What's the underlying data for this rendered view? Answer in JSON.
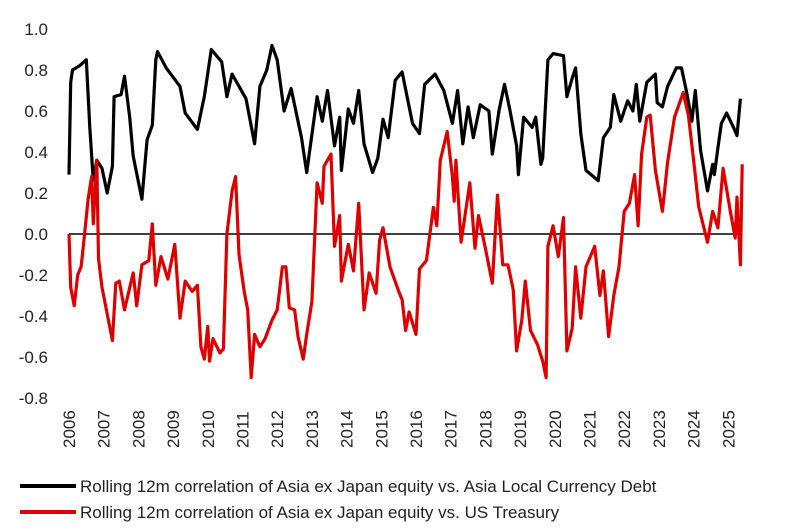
{
  "chart_data": {
    "type": "line",
    "title": "",
    "xlabel": "",
    "ylabel": "",
    "ylim": [
      -0.8,
      1.0
    ],
    "xlim": [
      2006,
      2025.4
    ],
    "y_ticks": [
      "1.0",
      "0.8",
      "0.6",
      "0.4",
      "0.2",
      "0.0",
      "-0.2",
      "-0.4",
      "-0.6",
      "-0.8"
    ],
    "y_tick_values": [
      1.0,
      0.8,
      0.6,
      0.4,
      0.2,
      0.0,
      -0.2,
      -0.4,
      -0.6,
      -0.8
    ],
    "x_ticks": [
      "2006",
      "2007",
      "2008",
      "2009",
      "2010",
      "2011",
      "2012",
      "2013",
      "2014",
      "2015",
      "2016",
      "2017",
      "2018",
      "2019",
      "2020",
      "2021",
      "2022",
      "2023",
      "2024",
      "2025"
    ],
    "grid": false,
    "zero_line": true,
    "legend_position": "bottom",
    "series": [
      {
        "name": "Rolling 12m correlation of Asia ex Japan equity vs. Asia Local Currency Debt",
        "color": "#000000",
        "points": [
          [
            2006.0,
            0.29
          ],
          [
            2006.05,
            0.74
          ],
          [
            2006.1,
            0.8
          ],
          [
            2006.3,
            0.82
          ],
          [
            2006.5,
            0.85
          ],
          [
            2006.6,
            0.52
          ],
          [
            2006.7,
            0.26
          ],
          [
            2006.8,
            0.36
          ],
          [
            2006.95,
            0.32
          ],
          [
            2007.1,
            0.2
          ],
          [
            2007.25,
            0.33
          ],
          [
            2007.3,
            0.67
          ],
          [
            2007.5,
            0.68
          ],
          [
            2007.6,
            0.77
          ],
          [
            2007.75,
            0.57
          ],
          [
            2007.85,
            0.38
          ],
          [
            2008.1,
            0.17
          ],
          [
            2008.25,
            0.46
          ],
          [
            2008.4,
            0.53
          ],
          [
            2008.5,
            0.85
          ],
          [
            2008.55,
            0.89
          ],
          [
            2008.8,
            0.81
          ],
          [
            2009.2,
            0.72
          ],
          [
            2009.35,
            0.59
          ],
          [
            2009.7,
            0.51
          ],
          [
            2009.9,
            0.67
          ],
          [
            2010.1,
            0.9
          ],
          [
            2010.4,
            0.84
          ],
          [
            2010.55,
            0.67
          ],
          [
            2010.7,
            0.78
          ],
          [
            2011.1,
            0.66
          ],
          [
            2011.35,
            0.44
          ],
          [
            2011.5,
            0.72
          ],
          [
            2011.7,
            0.8
          ],
          [
            2011.85,
            0.92
          ],
          [
            2012.0,
            0.85
          ],
          [
            2012.2,
            0.6
          ],
          [
            2012.4,
            0.71
          ],
          [
            2012.7,
            0.47
          ],
          [
            2012.85,
            0.3
          ],
          [
            2013.15,
            0.67
          ],
          [
            2013.3,
            0.55
          ],
          [
            2013.45,
            0.7
          ],
          [
            2013.65,
            0.43
          ],
          [
            2013.8,
            0.57
          ],
          [
            2013.85,
            0.31
          ],
          [
            2014.05,
            0.61
          ],
          [
            2014.2,
            0.54
          ],
          [
            2014.35,
            0.7
          ],
          [
            2014.5,
            0.44
          ],
          [
            2014.75,
            0.3
          ],
          [
            2014.9,
            0.37
          ],
          [
            2015.05,
            0.56
          ],
          [
            2015.2,
            0.47
          ],
          [
            2015.4,
            0.75
          ],
          [
            2015.6,
            0.79
          ],
          [
            2015.9,
            0.54
          ],
          [
            2016.1,
            0.49
          ],
          [
            2016.25,
            0.73
          ],
          [
            2016.55,
            0.78
          ],
          [
            2016.8,
            0.7
          ],
          [
            2017.05,
            0.54
          ],
          [
            2017.2,
            0.7
          ],
          [
            2017.35,
            0.44
          ],
          [
            2017.5,
            0.62
          ],
          [
            2017.65,
            0.47
          ],
          [
            2017.85,
            0.63
          ],
          [
            2018.1,
            0.6
          ],
          [
            2018.2,
            0.39
          ],
          [
            2018.4,
            0.61
          ],
          [
            2018.55,
            0.73
          ],
          [
            2018.7,
            0.61
          ],
          [
            2018.9,
            0.43
          ],
          [
            2018.95,
            0.29
          ],
          [
            2019.1,
            0.57
          ],
          [
            2019.35,
            0.52
          ],
          [
            2019.45,
            0.57
          ],
          [
            2019.6,
            0.34
          ],
          [
            2019.65,
            0.37
          ],
          [
            2019.8,
            0.85
          ],
          [
            2019.95,
            0.88
          ],
          [
            2020.25,
            0.87
          ],
          [
            2020.35,
            0.67
          ],
          [
            2020.5,
            0.76
          ],
          [
            2020.6,
            0.81
          ],
          [
            2020.75,
            0.49
          ],
          [
            2020.9,
            0.31
          ],
          [
            2021.25,
            0.26
          ],
          [
            2021.4,
            0.47
          ],
          [
            2021.6,
            0.52
          ],
          [
            2021.7,
            0.68
          ],
          [
            2021.9,
            0.55
          ],
          [
            2022.1,
            0.65
          ],
          [
            2022.25,
            0.6
          ],
          [
            2022.35,
            0.73
          ],
          [
            2022.45,
            0.55
          ],
          [
            2022.65,
            0.74
          ],
          [
            2022.9,
            0.78
          ],
          [
            2022.95,
            0.64
          ],
          [
            2023.1,
            0.62
          ],
          [
            2023.25,
            0.72
          ],
          [
            2023.5,
            0.81
          ],
          [
            2023.65,
            0.81
          ],
          [
            2023.8,
            0.69
          ],
          [
            2023.95,
            0.55
          ],
          [
            2024.05,
            0.7
          ],
          [
            2024.2,
            0.41
          ],
          [
            2024.4,
            0.21
          ],
          [
            2024.55,
            0.34
          ],
          [
            2024.6,
            0.29
          ],
          [
            2024.7,
            0.42
          ],
          [
            2024.8,
            0.54
          ],
          [
            2024.95,
            0.59
          ],
          [
            2025.15,
            0.52
          ],
          [
            2025.25,
            0.48
          ],
          [
            2025.35,
            0.66
          ]
        ]
      },
      {
        "name": "Rolling 12m correlation of Asia ex Japan equity vs. US Treasury",
        "color": "#e00000",
        "points": [
          [
            2006.0,
            0.0
          ],
          [
            2006.05,
            -0.26
          ],
          [
            2006.15,
            -0.35
          ],
          [
            2006.25,
            -0.2
          ],
          [
            2006.35,
            -0.16
          ],
          [
            2006.45,
            0.0
          ],
          [
            2006.55,
            0.17
          ],
          [
            2006.65,
            0.28
          ],
          [
            2006.7,
            0.05
          ],
          [
            2006.8,
            0.36
          ],
          [
            2006.85,
            -0.12
          ],
          [
            2006.95,
            -0.26
          ],
          [
            2007.1,
            -0.39
          ],
          [
            2007.25,
            -0.52
          ],
          [
            2007.35,
            -0.24
          ],
          [
            2007.45,
            -0.23
          ],
          [
            2007.6,
            -0.37
          ],
          [
            2007.85,
            -0.19
          ],
          [
            2007.95,
            -0.35
          ],
          [
            2008.1,
            -0.15
          ],
          [
            2008.3,
            -0.13
          ],
          [
            2008.4,
            0.05
          ],
          [
            2008.5,
            -0.25
          ],
          [
            2008.65,
            -0.11
          ],
          [
            2008.85,
            -0.22
          ],
          [
            2009.05,
            -0.05
          ],
          [
            2009.2,
            -0.41
          ],
          [
            2009.35,
            -0.23
          ],
          [
            2009.55,
            -0.28
          ],
          [
            2009.7,
            -0.25
          ],
          [
            2009.8,
            -0.55
          ],
          [
            2009.9,
            -0.61
          ],
          [
            2010.0,
            -0.45
          ],
          [
            2010.05,
            -0.62
          ],
          [
            2010.15,
            -0.51
          ],
          [
            2010.35,
            -0.58
          ],
          [
            2010.45,
            -0.56
          ],
          [
            2010.55,
            0.0
          ],
          [
            2010.7,
            0.21
          ],
          [
            2010.8,
            0.28
          ],
          [
            2010.9,
            -0.1
          ],
          [
            2011.05,
            -0.28
          ],
          [
            2011.15,
            -0.37
          ],
          [
            2011.25,
            -0.7
          ],
          [
            2011.35,
            -0.49
          ],
          [
            2011.5,
            -0.55
          ],
          [
            2011.65,
            -0.51
          ],
          [
            2011.85,
            -0.42
          ],
          [
            2012.0,
            -0.37
          ],
          [
            2012.15,
            -0.16
          ],
          [
            2012.25,
            -0.16
          ],
          [
            2012.35,
            -0.36
          ],
          [
            2012.5,
            -0.37
          ],
          [
            2012.6,
            -0.5
          ],
          [
            2012.75,
            -0.61
          ],
          [
            2012.85,
            -0.49
          ],
          [
            2013.0,
            -0.33
          ],
          [
            2013.15,
            0.25
          ],
          [
            2013.3,
            0.15
          ],
          [
            2013.35,
            0.33
          ],
          [
            2013.55,
            0.39
          ],
          [
            2013.65,
            -0.06
          ],
          [
            2013.8,
            0.09
          ],
          [
            2013.85,
            -0.23
          ],
          [
            2014.05,
            -0.05
          ],
          [
            2014.2,
            -0.18
          ],
          [
            2014.35,
            0.15
          ],
          [
            2014.5,
            -0.37
          ],
          [
            2014.65,
            -0.19
          ],
          [
            2014.85,
            -0.29
          ],
          [
            2014.95,
            -0.03
          ],
          [
            2015.05,
            0.03
          ],
          [
            2015.25,
            -0.16
          ],
          [
            2015.5,
            -0.28
          ],
          [
            2015.6,
            -0.32
          ],
          [
            2015.7,
            -0.47
          ],
          [
            2015.8,
            -0.38
          ],
          [
            2016.0,
            -0.49
          ],
          [
            2016.1,
            -0.17
          ],
          [
            2016.3,
            -0.13
          ],
          [
            2016.5,
            0.13
          ],
          [
            2016.6,
            0.04
          ],
          [
            2016.7,
            0.36
          ],
          [
            2016.9,
            0.5
          ],
          [
            2017.05,
            0.28
          ],
          [
            2017.1,
            0.16
          ],
          [
            2017.15,
            0.36
          ],
          [
            2017.3,
            -0.04
          ],
          [
            2017.55,
            0.25
          ],
          [
            2017.7,
            -0.07
          ],
          [
            2017.8,
            0.09
          ],
          [
            2018.0,
            -0.07
          ],
          [
            2018.2,
            -0.24
          ],
          [
            2018.35,
            0.19
          ],
          [
            2018.5,
            -0.15
          ],
          [
            2018.65,
            -0.15
          ],
          [
            2018.8,
            -0.27
          ],
          [
            2018.9,
            -0.57
          ],
          [
            2019.05,
            -0.42
          ],
          [
            2019.15,
            -0.23
          ],
          [
            2019.3,
            -0.47
          ],
          [
            2019.5,
            -0.54
          ],
          [
            2019.65,
            -0.62
          ],
          [
            2019.75,
            -0.7
          ],
          [
            2019.8,
            -0.06
          ],
          [
            2019.95,
            0.04
          ],
          [
            2020.1,
            -0.11
          ],
          [
            2020.25,
            0.08
          ],
          [
            2020.35,
            -0.57
          ],
          [
            2020.5,
            -0.46
          ],
          [
            2020.6,
            -0.16
          ],
          [
            2020.75,
            -0.41
          ],
          [
            2020.9,
            -0.16
          ],
          [
            2021.15,
            -0.06
          ],
          [
            2021.3,
            -0.3
          ],
          [
            2021.4,
            -0.18
          ],
          [
            2021.55,
            -0.5
          ],
          [
            2021.7,
            -0.3
          ],
          [
            2021.85,
            -0.16
          ],
          [
            2022.0,
            0.11
          ],
          [
            2022.15,
            0.15
          ],
          [
            2022.3,
            0.29
          ],
          [
            2022.4,
            0.04
          ],
          [
            2022.5,
            0.39
          ],
          [
            2022.65,
            0.57
          ],
          [
            2022.75,
            0.58
          ],
          [
            2022.9,
            0.31
          ],
          [
            2023.1,
            0.11
          ],
          [
            2023.25,
            0.35
          ],
          [
            2023.45,
            0.57
          ],
          [
            2023.7,
            0.69
          ],
          [
            2023.85,
            0.58
          ],
          [
            2024.0,
            0.36
          ],
          [
            2024.15,
            0.13
          ],
          [
            2024.4,
            -0.04
          ],
          [
            2024.55,
            0.11
          ],
          [
            2024.7,
            0.03
          ],
          [
            2024.85,
            0.32
          ],
          [
            2025.05,
            0.12
          ],
          [
            2025.2,
            -0.02
          ],
          [
            2025.25,
            0.18
          ],
          [
            2025.35,
            -0.15
          ],
          [
            2025.4,
            0.34
          ]
        ]
      }
    ]
  }
}
